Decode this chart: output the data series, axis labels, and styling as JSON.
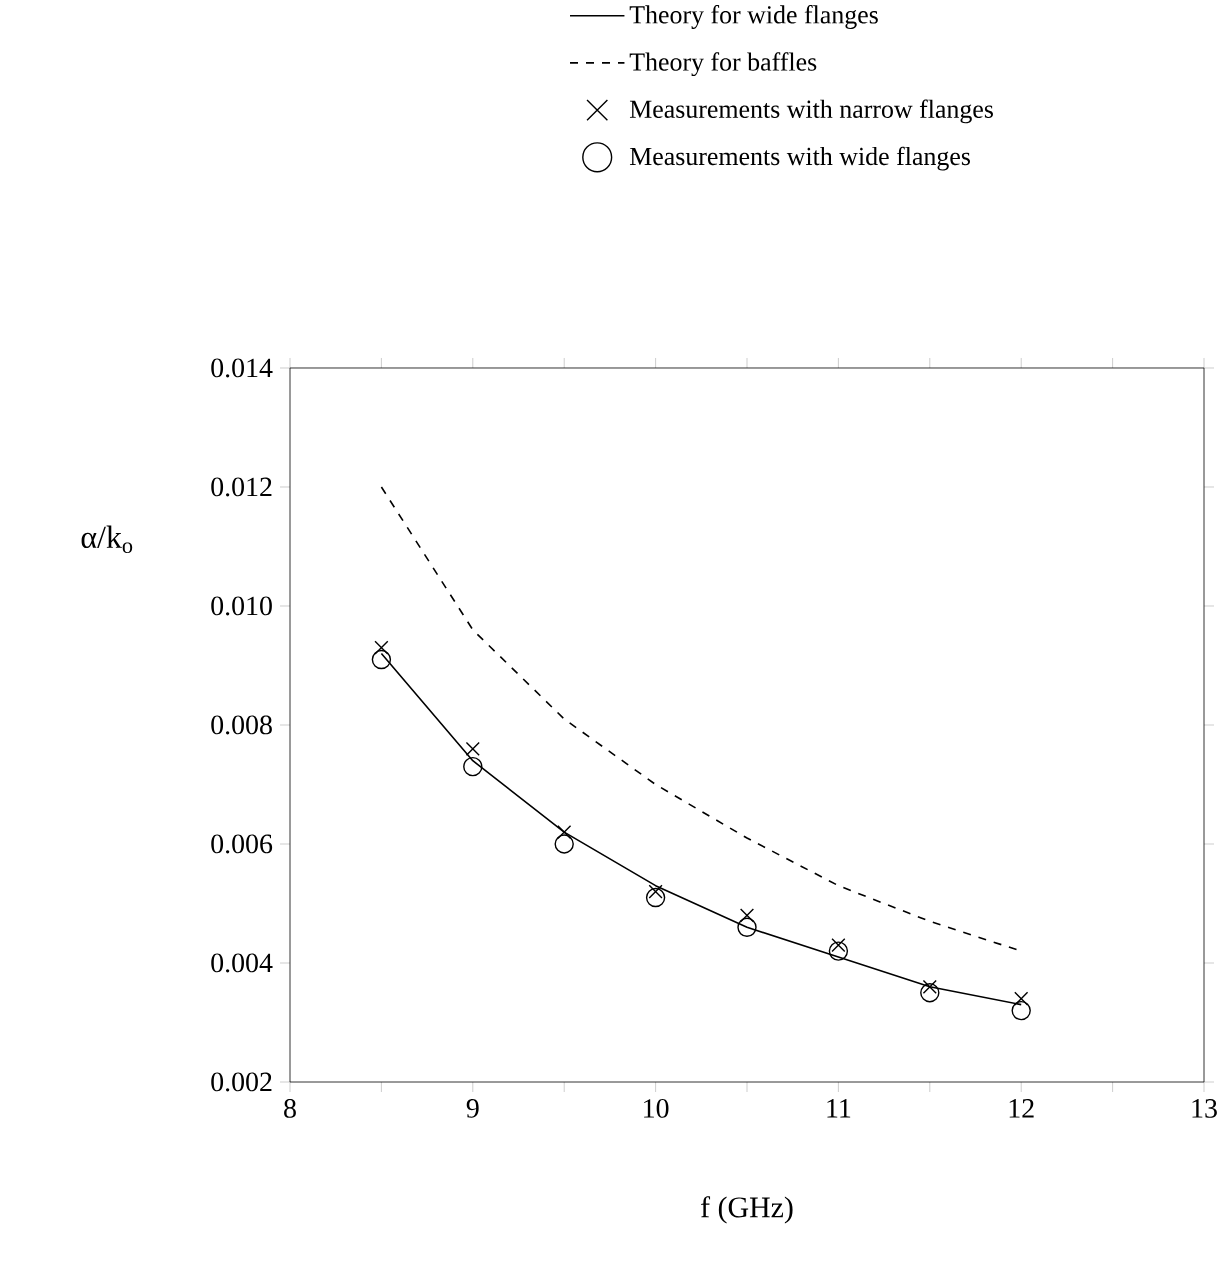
{
  "chart_data": {
    "type": "line",
    "xlabel": "f (GHz)",
    "ylabel": "α/k$_{o}$",
    "x": [
      8.5,
      9,
      9.5,
      10,
      10.5,
      11,
      11.5,
      12
    ],
    "xlim": [
      8,
      13
    ],
    "ylim": [
      0.002,
      0.014
    ],
    "xticks": [
      8,
      9,
      10,
      11,
      12,
      13
    ],
    "yticks": [
      0.002,
      0.004,
      0.006,
      0.008,
      {
        "value": 0.01,
        "label": "0.010"
      },
      0.012,
      0.014
    ],
    "legend": "top",
    "grid": false,
    "series": [
      {
        "name": "Theory for wide flanges",
        "line_style": "solid",
        "marker": "none",
        "color": "#000000",
        "values": [
          0.0092,
          0.0074,
          0.0062,
          0.0053,
          0.0046,
          0.0041,
          0.0036,
          0.0033
        ]
      },
      {
        "name": "Theory for baffles",
        "line_style": "dashed",
        "marker": "none",
        "color": "#000000",
        "values": [
          0.012,
          0.0096,
          0.0081,
          0.007,
          0.0061,
          0.0053,
          0.0047,
          0.0042
        ]
      },
      {
        "name": "Measurements with narrow flanges",
        "type": "scatter",
        "marker": "cross",
        "color": "#000000",
        "values": [
          0.0093,
          0.0076,
          0.0062,
          0.0052,
          0.0048,
          0.0043,
          0.0036,
          0.0034
        ]
      },
      {
        "name": "Measurements with wide flanges",
        "type": "scatter",
        "marker": "circle",
        "color": "#000000",
        "values": [
          0.0091,
          0.0073,
          0.006,
          0.0051,
          0.0046,
          0.0042,
          0.0035,
          0.0032
        ]
      }
    ]
  }
}
